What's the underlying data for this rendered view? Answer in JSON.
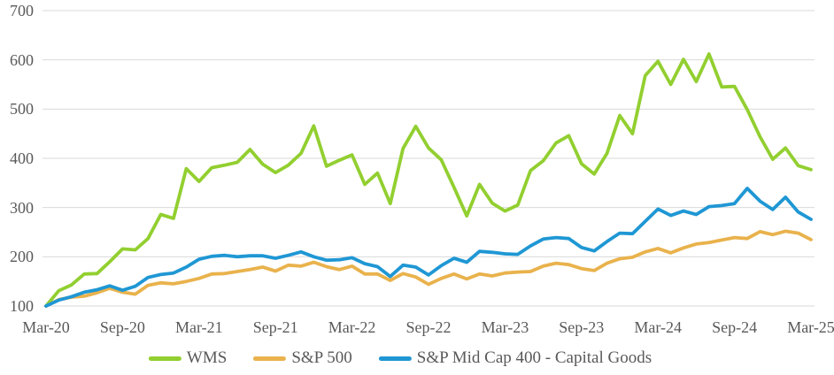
{
  "chart_data": {
    "type": "line",
    "title": "",
    "xlabel": "",
    "ylabel": "",
    "x_unit": "monthly",
    "x_tick_labels": [
      "Mar-20",
      "Sep-20",
      "Mar-21",
      "Sep-21",
      "Mar-22",
      "Sep-22",
      "Mar-23",
      "Sep-23",
      "Mar-24",
      "Sep-24",
      "Mar-25"
    ],
    "months_per_tick": 6,
    "y_ticks": [
      100,
      200,
      300,
      400,
      500,
      600,
      700
    ],
    "ylim": [
      100,
      700
    ],
    "grid": "horizontal-only",
    "legend_position": "bottom-center",
    "series": [
      {
        "name": "WMS",
        "color": "#92CF30",
        "values": [
          100,
          131,
          143,
          165,
          166,
          190,
          216,
          214,
          237,
          286,
          278,
          379,
          353,
          381,
          386,
          392,
          418,
          388,
          371,
          386,
          410,
          466,
          384,
          396,
          407,
          347,
          370,
          308,
          420,
          465,
          421,
          397,
          341,
          283,
          347,
          309,
          293,
          305,
          375,
          395,
          431,
          446,
          389,
          368,
          410,
          487,
          450,
          568,
          597,
          550,
          601,
          556,
          612,
          545,
          546,
          499,
          444,
          398,
          421,
          385,
          377
        ]
      },
      {
        "name": "S&P 500",
        "color": "#E9B24C",
        "values": [
          100,
          113,
          118,
          120,
          127,
          136,
          128,
          124,
          142,
          147,
          145,
          150,
          156,
          165,
          166,
          170,
          174,
          179,
          171,
          183,
          181,
          189,
          180,
          174,
          181,
          165,
          165,
          152,
          166,
          159,
          144,
          156,
          165,
          155,
          165,
          161,
          167,
          169,
          170,
          181,
          187,
          184,
          176,
          172,
          187,
          196,
          199,
          210,
          217,
          208,
          218,
          226,
          229,
          234,
          239,
          237,
          251,
          245,
          252,
          248,
          235
        ]
      },
      {
        "name": "S&P Mid Cap 400 - Capital Goods",
        "color": "#1F97D4",
        "values": [
          100,
          112,
          119,
          128,
          133,
          141,
          132,
          140,
          158,
          164,
          167,
          179,
          195,
          201,
          203,
          200,
          202,
          202,
          197,
          203,
          210,
          200,
          193,
          194,
          198,
          186,
          180,
          160,
          183,
          179,
          163,
          182,
          197,
          189,
          211,
          209,
          206,
          205,
          222,
          236,
          239,
          237,
          219,
          212,
          231,
          248,
          247,
          272,
          297,
          284,
          293,
          286,
          302,
          304,
          308,
          339,
          313,
          296,
          321,
          291,
          276
        ]
      }
    ]
  },
  "colors": {
    "background": "#FFFFFF",
    "gridline": "#D9D9D9",
    "axis_text": "#595959"
  }
}
